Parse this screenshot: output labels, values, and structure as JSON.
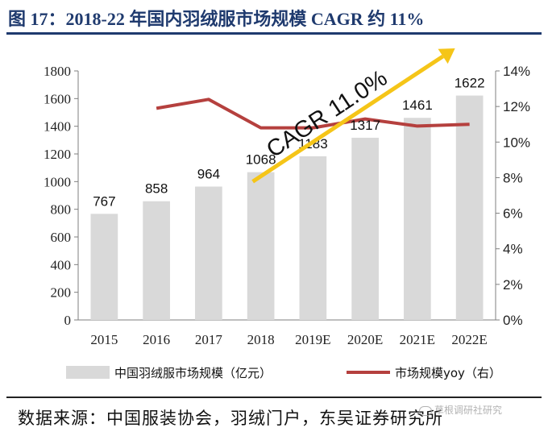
{
  "title": "图 17：2018-22 年国内羽绒服市场规模 CAGR 约 11%",
  "source": "数据来源：中国服装协会，羽绒门户，东吴证券研究所",
  "watermark": "草根调研社研究",
  "chart_data": {
    "type": "bar+line",
    "categories": [
      "2015",
      "2016",
      "2017",
      "2018",
      "2019E",
      "2020E",
      "2021E",
      "2022E"
    ],
    "series": [
      {
        "name": "中国羽绒服市场规模（亿元）",
        "type": "bar",
        "axis": "left",
        "values": [
          767,
          858,
          964,
          1068,
          1183,
          1317,
          1461,
          1622
        ],
        "labels": [
          "767",
          "858",
          "964",
          "1068",
          "1183",
          "1317",
          "1461",
          "1622"
        ],
        "color": "#d9d9d9"
      },
      {
        "name": "市场规模yoy（右）",
        "type": "line",
        "axis": "right",
        "values": [
          null,
          11.9,
          12.4,
          10.8,
          10.8,
          11.3,
          10.9,
          11.0
        ],
        "color": "#b5403e"
      }
    ],
    "left_axis": {
      "min": 0,
      "max": 1800,
      "step": 200,
      "ticks": [
        "0",
        "200",
        "400",
        "600",
        "800",
        "1000",
        "1200",
        "1400",
        "1600",
        "1800"
      ]
    },
    "right_axis": {
      "min": 0,
      "max": 14,
      "step": 2,
      "ticks": [
        "0%",
        "2%",
        "4%",
        "6%",
        "8%",
        "10%",
        "12%",
        "14%"
      ]
    },
    "annotation": {
      "text": "CAGR 11.0%",
      "arrow_color": "#f5c518"
    },
    "legend_position": "bottom"
  }
}
